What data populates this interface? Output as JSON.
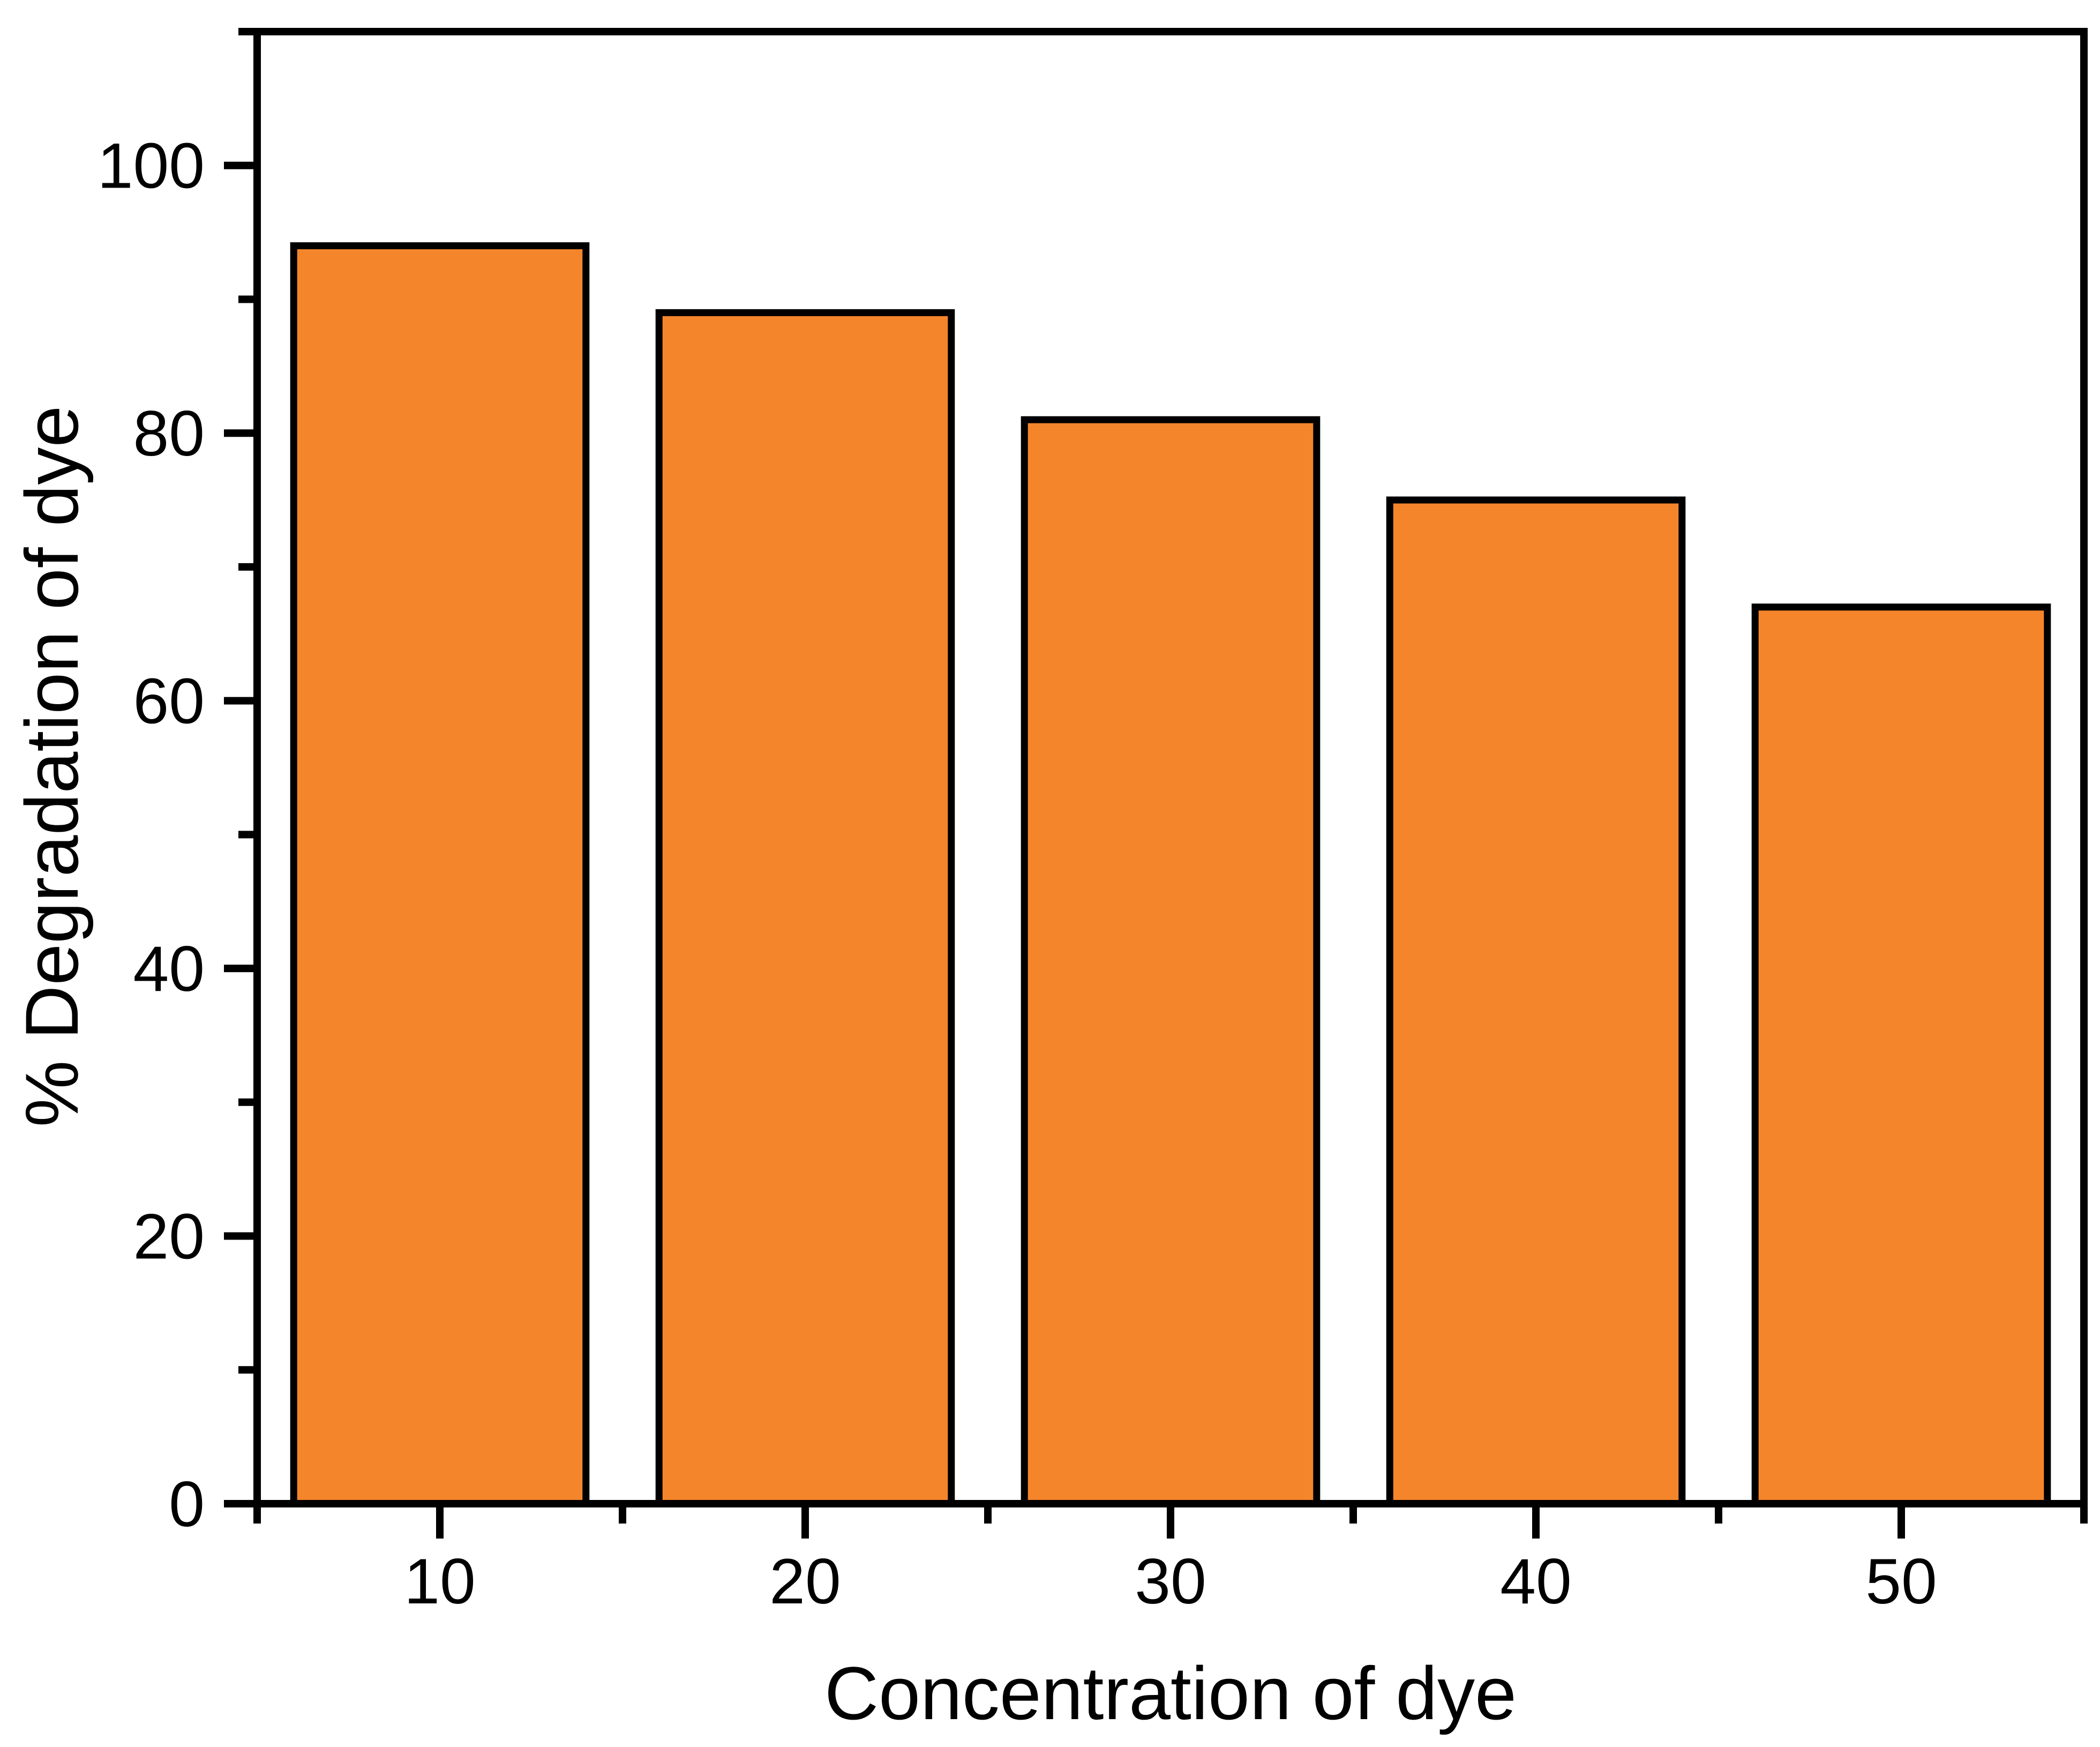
{
  "chart_data": {
    "type": "bar",
    "title": "",
    "xlabel": "Concentration of dye",
    "ylabel": "% Degradation of dye",
    "categories": [
      10,
      20,
      30,
      40,
      50
    ],
    "values": [
      94,
      89,
      81,
      75,
      67
    ],
    "series_name": "% Degradation of dye",
    "xlim": [
      5,
      55
    ],
    "ylim": [
      0,
      110
    ],
    "bar_width_x_units": 8,
    "x_major_ticks": [
      10,
      20,
      30,
      40,
      50
    ],
    "x_major_tick_labels": [
      "10",
      "20",
      "30",
      "40",
      "50"
    ],
    "x_minor_ticks": [
      5,
      15,
      25,
      35,
      45,
      55
    ],
    "y_major_ticks": [
      0,
      20,
      40,
      60,
      80,
      100
    ],
    "y_major_tick_labels": [
      "0",
      "20",
      "40",
      "60",
      "80",
      "100"
    ],
    "y_minor_ticks": [
      10,
      30,
      50,
      70,
      90,
      110
    ],
    "grid": false,
    "legend": "none",
    "tick_direction": "out",
    "frame": "full-box",
    "colors": {
      "bar_fill": "#F5852B",
      "bar_stroke": "#000000",
      "axis": "#000000",
      "text": "#000000",
      "background": "#FFFFFF"
    }
  }
}
